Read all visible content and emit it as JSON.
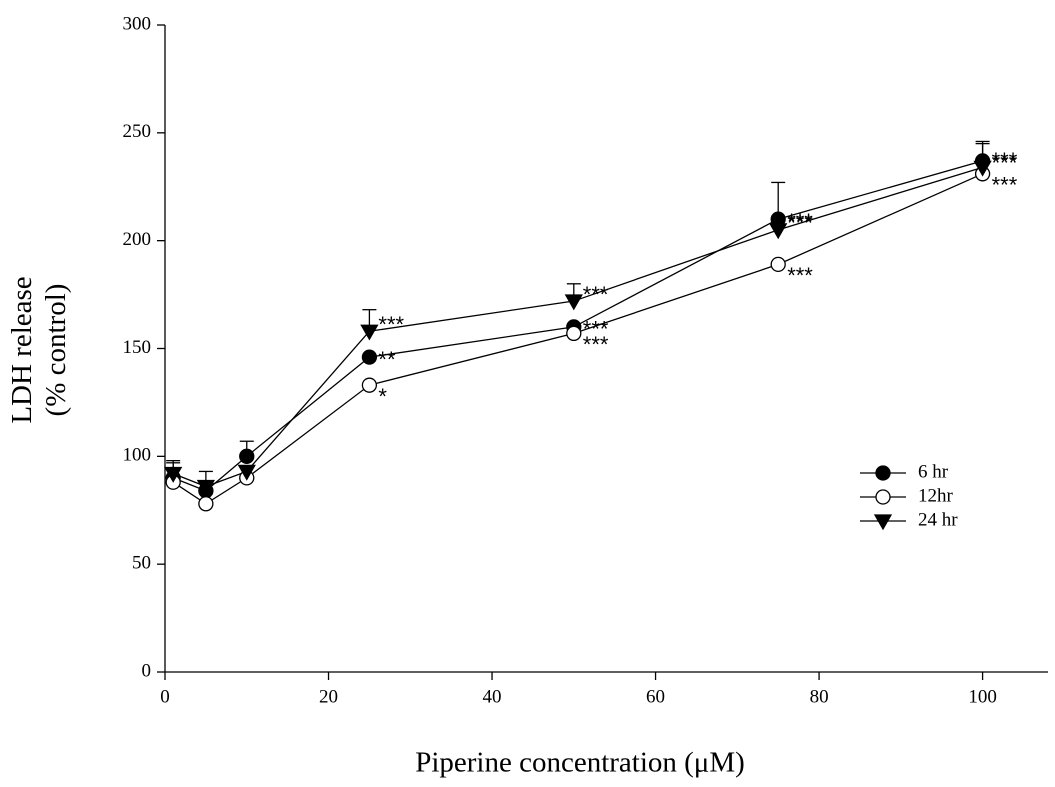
{
  "chart_data": {
    "type": "line",
    "xlabel": "Piperine concentration (μM)",
    "ylabel": [
      "LDH release",
      "(% control)"
    ],
    "xlim": [
      0,
      108
    ],
    "ylim": [
      0,
      300
    ],
    "xticks": [
      0,
      20,
      40,
      60,
      80,
      100
    ],
    "yticks": [
      0,
      50,
      100,
      150,
      200,
      250,
      300
    ],
    "grid": false,
    "legend": "lower right",
    "x": [
      1,
      5,
      10,
      25,
      50,
      75,
      100
    ],
    "series": [
      {
        "name": "6 hr",
        "color": "#000000",
        "marker": "circle",
        "fill": "#000000",
        "values": [
          90,
          84,
          100,
          146,
          160,
          210,
          237
        ],
        "errors": [
          7,
          null,
          7,
          null,
          null,
          17,
          9
        ],
        "annotations": [
          null,
          null,
          null,
          "**",
          "***",
          "***",
          "***"
        ]
      },
      {
        "name": "12hr",
        "color": "#000000",
        "marker": "circle",
        "fill": "#ffffff",
        "values": [
          88,
          78,
          90,
          133,
          157,
          189,
          231
        ],
        "errors": [
          null,
          null,
          null,
          null,
          null,
          null,
          null
        ],
        "annotations": [
          null,
          null,
          null,
          "*",
          "***",
          "***",
          "***"
        ]
      },
      {
        "name": "24 hr",
        "color": "#000000",
        "marker": "triangle-down",
        "fill": "#000000",
        "values": [
          92,
          86,
          93,
          158,
          172,
          205,
          234
        ],
        "errors": [
          6,
          7,
          null,
          10,
          8,
          null,
          11
        ],
        "annotations": [
          null,
          null,
          null,
          "***",
          "***",
          "***",
          "***"
        ]
      }
    ]
  }
}
